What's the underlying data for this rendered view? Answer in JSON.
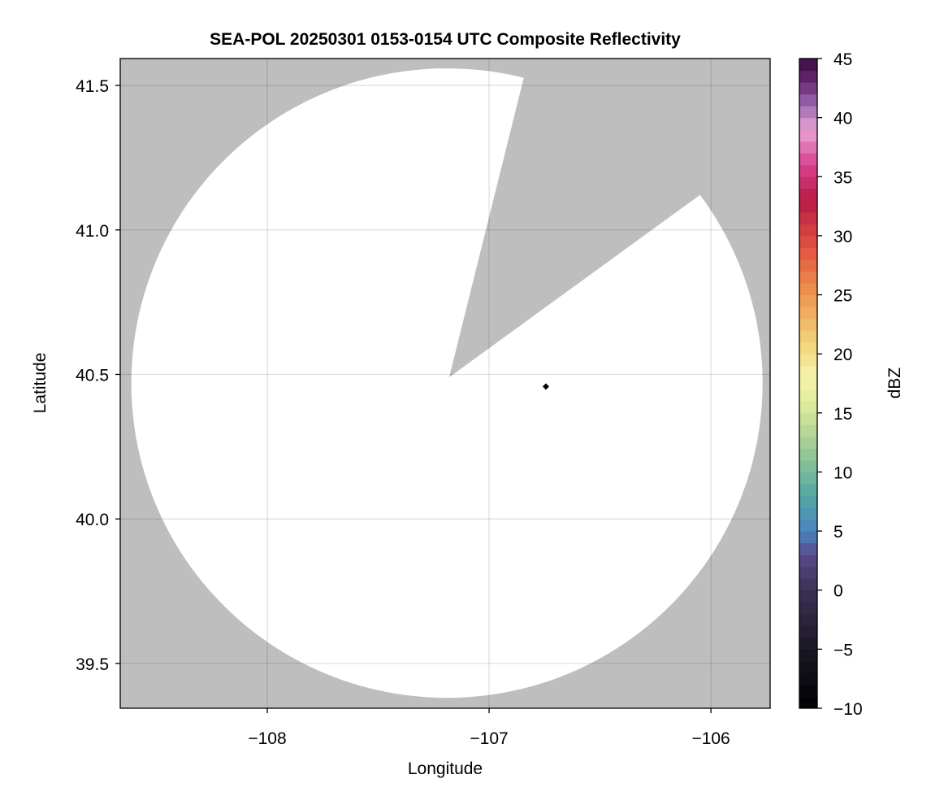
{
  "chart_data": {
    "type": "heatmap",
    "title": "SEA-POL 20250301 0153-0154 UTC Composite Reflectivity",
    "xlabel": "Longitude",
    "ylabel": "Latitude",
    "xlim": [
      -108.663,
      -105.733
    ],
    "ylim": [
      39.345,
      41.593
    ],
    "xticks": [
      -108,
      -107,
      -106
    ],
    "xtick_labels": [
      "−108",
      "−107",
      "−106"
    ],
    "yticks": [
      39.5,
      40.0,
      40.5,
      41.0,
      41.5
    ],
    "ytick_labels": [
      "39.5",
      "40.0",
      "40.5",
      "41.0",
      "41.5"
    ],
    "grid": true,
    "background_color": "#bebebe",
    "radar_coverage": {
      "center_lon": -107.19,
      "center_lat": 40.47,
      "radius_lon_deg": 1.423,
      "radius_lat_deg": 1.089,
      "fill_color": "#ffffff",
      "blocked_sector_apex": [
        -107.18,
        40.49
      ],
      "blocked_sector_azimuth_deg": [
        14,
        54
      ]
    },
    "marker": {
      "lon": -106.744,
      "lat": 40.458,
      "shape": "diamond",
      "color": "#000000"
    },
    "colorbar": {
      "label": "dBZ",
      "range": [
        -10,
        45
      ],
      "step": 1,
      "ticks": [
        -10,
        -5,
        0,
        5,
        10,
        15,
        20,
        25,
        30,
        35,
        40,
        45
      ],
      "tick_labels": [
        "−10",
        "−5",
        "0",
        "5",
        "10",
        "15",
        "20",
        "25",
        "30",
        "35",
        "40",
        "45"
      ],
      "colors": [
        "#000004",
        "#1b1724",
        "#3a3155",
        "#5a4a8c",
        "#4a84c0",
        "#52a8a2",
        "#9ccb94",
        "#e3ec9c",
        "#f6f3ac",
        "#f2d37a",
        "#ee9650",
        "#e2533f",
        "#b81b45",
        "#d9418f",
        "#e8a3d4",
        "#9e6cb4",
        "#6a2874",
        "#3a0a44"
      ],
      "color_positions": [
        -10,
        -5,
        0,
        3,
        5,
        8,
        12,
        16,
        18,
        21,
        25,
        29,
        33,
        36,
        39,
        41,
        43,
        45
      ]
    },
    "data_values": []
  }
}
